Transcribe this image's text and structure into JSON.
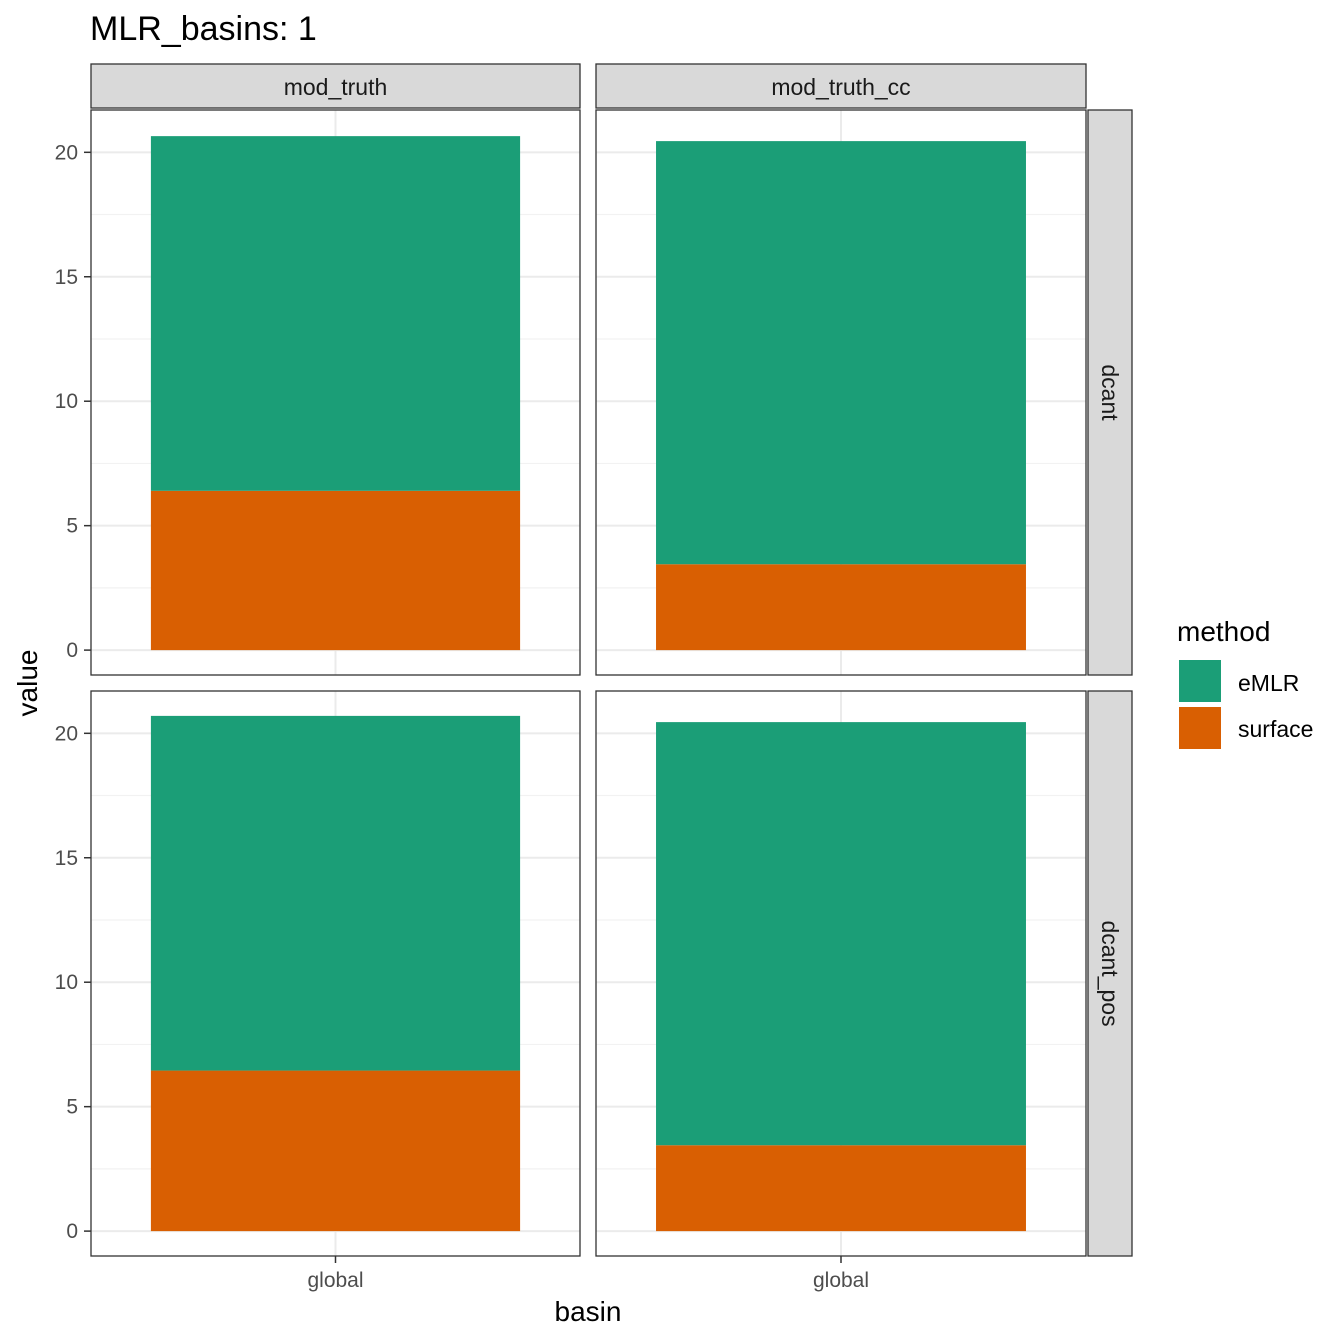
{
  "chart_data": {
    "type": "bar",
    "stacked": true,
    "title": "MLR_basins: 1",
    "xlabel": "basin",
    "ylabel": "value",
    "ylim": [
      -1.0,
      21.7
    ],
    "y_ticks": [
      0,
      5,
      10,
      15,
      20
    ],
    "y_tick_labels": [
      "0",
      "5",
      "10",
      "15",
      "20"
    ],
    "categories": [
      "global"
    ],
    "grid": true,
    "legend": {
      "title": "method",
      "position": "right",
      "entries": [
        {
          "name": "eMLR",
          "color": "#1b9e77"
        },
        {
          "name": "surface",
          "color": "#d95f02"
        }
      ]
    },
    "facet_cols": [
      "mod_truth",
      "mod_truth_cc"
    ],
    "facet_rows": [
      "dcant",
      "dcant_pos"
    ],
    "panels": [
      {
        "col": "mod_truth",
        "row": "dcant",
        "series": [
          {
            "name": "surface",
            "values": [
              6.4
            ]
          },
          {
            "name": "eMLR",
            "values": [
              14.25
            ]
          }
        ]
      },
      {
        "col": "mod_truth_cc",
        "row": "dcant",
        "series": [
          {
            "name": "surface",
            "values": [
              3.45
            ]
          },
          {
            "name": "eMLR",
            "values": [
              17.0
            ]
          }
        ]
      },
      {
        "col": "mod_truth",
        "row": "dcant_pos",
        "series": [
          {
            "name": "surface",
            "values": [
              6.45
            ]
          },
          {
            "name": "eMLR",
            "values": [
              14.25
            ]
          }
        ]
      },
      {
        "col": "mod_truth_cc",
        "row": "dcant_pos",
        "series": [
          {
            "name": "surface",
            "values": [
              3.45
            ]
          },
          {
            "name": "eMLR",
            "values": [
              17.0
            ]
          }
        ]
      }
    ]
  },
  "colors": {
    "panel_border": "#333333",
    "strip_fill": "#d9d9d9",
    "grid_major": "#ebebeb",
    "grid_minor": "#f2f2f2"
  }
}
